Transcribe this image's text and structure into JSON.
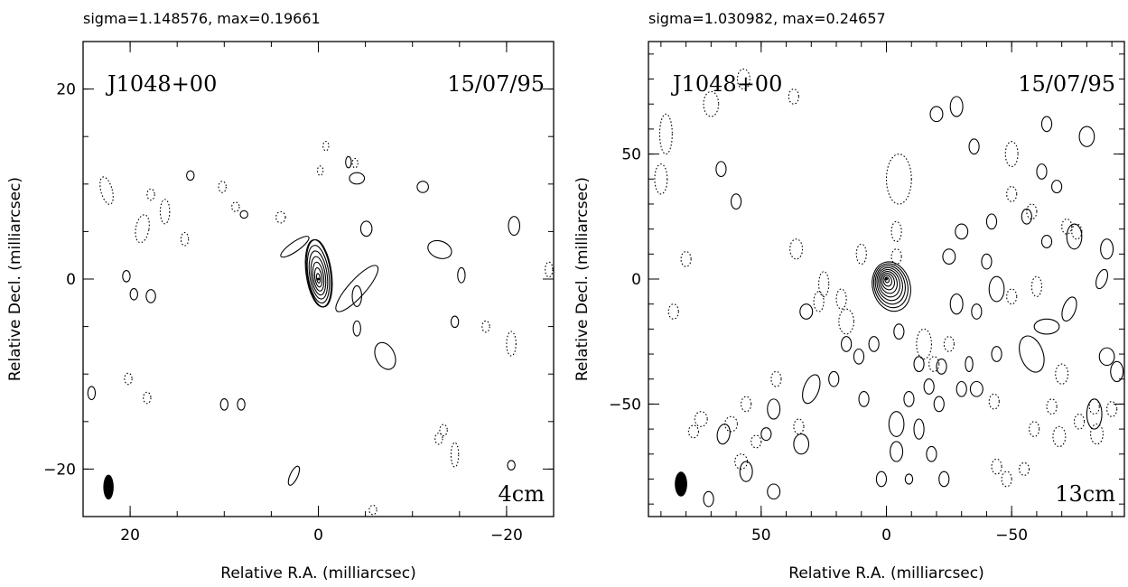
{
  "chart_data": [
    {
      "type": "contour",
      "header": "sigma=1.148576, max=0.19661",
      "source": "J1048+00",
      "date": "15/07/95",
      "band": "4cm",
      "xlabel": "Relative R.A. (milliarcsec)",
      "ylabel": "Relative Decl. (milliarcsec)",
      "xlim": [
        25,
        -25
      ],
      "ylim": [
        -25,
        25
      ],
      "xticks": [
        20,
        0,
        -20
      ],
      "yticks": [
        20,
        0,
        -20
      ],
      "xtick_labels": [
        "20",
        "0",
        "−20"
      ],
      "ytick_labels": [
        "20",
        "0",
        "−20"
      ],
      "core": {
        "x": 0,
        "y": 0
      },
      "contour_levels": 7,
      "beam": {
        "x": 22.3,
        "y": -21.9,
        "major": 2.4,
        "minor": 1.0
      },
      "pos_blobs": [
        [
          -0.1,
          0.6,
          1.3,
          3.6,
          -8
        ],
        [
          -4.1,
          -1,
          3.2,
          0.9,
          -48
        ],
        [
          2.5,
          3.4,
          1.8,
          0.5,
          -35
        ],
        [
          -4.1,
          10.6,
          0.8,
          0.6,
          0
        ],
        [
          -11.1,
          9.7,
          0.6,
          0.6,
          0
        ],
        [
          -12.9,
          3.1,
          1.3,
          0.9,
          20
        ],
        [
          -15.2,
          0.4,
          0.4,
          0.8,
          0
        ],
        [
          -20.8,
          5.6,
          0.6,
          1,
          0
        ],
        [
          -7.1,
          -8.1,
          1,
          1.5,
          -25
        ],
        [
          -4.1,
          -1.8,
          0.5,
          1.1,
          0
        ],
        [
          -4.1,
          -5.2,
          0.4,
          0.8,
          0
        ],
        [
          -14.5,
          -4.5,
          0.4,
          0.6,
          0
        ],
        [
          20.4,
          0.3,
          0.4,
          0.6,
          0
        ],
        [
          19.6,
          -1.6,
          0.4,
          0.6,
          0
        ],
        [
          17.8,
          -1.8,
          0.5,
          0.7,
          0
        ],
        [
          10,
          -13.2,
          0.4,
          0.6,
          0
        ],
        [
          8.2,
          -13.2,
          0.4,
          0.6,
          0
        ],
        [
          2.6,
          -20.7,
          0.4,
          1.1,
          25
        ],
        [
          -20.5,
          -19.6,
          0.4,
          0.5,
          0
        ],
        [
          24.1,
          -12,
          0.4,
          0.7,
          0
        ],
        [
          7.9,
          6.8,
          0.4,
          0.4,
          0
        ],
        [
          13.6,
          10.9,
          0.4,
          0.5,
          0
        ],
        [
          -3.2,
          12.3,
          0.3,
          0.6,
          0
        ],
        [
          -5.1,
          5.3,
          0.6,
          0.8,
          0
        ]
      ],
      "neg_blobs": [
        [
          22.5,
          9.3,
          0.6,
          1.5,
          -15
        ],
        [
          18.7,
          5.3,
          0.7,
          1.5,
          10
        ],
        [
          16.3,
          7.1,
          0.5,
          1.3,
          0
        ],
        [
          14.2,
          4.2,
          0.4,
          0.7,
          0
        ],
        [
          17.8,
          8.9,
          0.4,
          0.6,
          0
        ],
        [
          -0.2,
          11.4,
          0.3,
          0.5,
          0
        ],
        [
          -20.5,
          -6.8,
          0.5,
          1.3,
          0
        ],
        [
          -14.5,
          -18.5,
          0.4,
          1.3,
          0
        ],
        [
          18.2,
          -12.5,
          0.4,
          0.6,
          0
        ],
        [
          20.2,
          -10.5,
          0.4,
          0.6,
          0
        ],
        [
          -24.5,
          1,
          0.4,
          0.8,
          0
        ],
        [
          -17.8,
          -5,
          0.4,
          0.6,
          0
        ],
        [
          4,
          6.5,
          0.5,
          0.6,
          0
        ],
        [
          -3.9,
          12.2,
          0.3,
          0.5,
          0
        ],
        [
          -5.8,
          -24.3,
          0.4,
          0.5,
          0
        ],
        [
          -13.3,
          -15.9,
          0.4,
          0.6,
          0
        ],
        [
          -12.8,
          -16.8,
          0.4,
          0.6,
          0
        ],
        [
          10.2,
          9.7,
          0.4,
          0.6,
          0
        ],
        [
          8.8,
          7.6,
          0.4,
          0.5,
          0
        ],
        [
          -0.8,
          14,
          0.3,
          0.5,
          0
        ]
      ]
    },
    {
      "type": "contour",
      "header": "sigma=1.030982, max=0.24657",
      "source": "J1048+00",
      "date": "15/07/95",
      "band": "13cm",
      "xlabel": "Relative R.A. (milliarcsec)",
      "ylabel": "Relative Decl. (milliarcsec)",
      "xlim": [
        95,
        -95
      ],
      "ylim": [
        -95,
        95
      ],
      "xticks": [
        50,
        0,
        -50
      ],
      "yticks": [
        50,
        0,
        -50
      ],
      "xtick_labels": [
        "50",
        "0",
        "−50"
      ],
      "ytick_labels": [
        "50",
        "0",
        "−50"
      ],
      "core": {
        "x": 0,
        "y": 0
      },
      "contour_levels": 9,
      "beam": {
        "x": 82,
        "y": -82,
        "major": 9,
        "minor": 4.5
      },
      "pos_blobs": [
        [
          -58,
          -30,
          4.5,
          7.5,
          -20
        ],
        [
          -64,
          -19,
          5,
          3,
          0
        ],
        [
          -73,
          -12,
          2.5,
          5,
          20
        ],
        [
          -75,
          17,
          3,
          5,
          0
        ],
        [
          -80,
          57,
          3,
          4,
          0
        ],
        [
          -83,
          -54,
          3,
          6,
          0
        ],
        [
          -88,
          -31,
          3,
          3.5,
          0
        ],
        [
          -92,
          -37,
          2.5,
          4,
          0
        ],
        [
          -88,
          12,
          2.5,
          4,
          0
        ],
        [
          -86,
          0,
          2,
          4,
          20
        ],
        [
          -40,
          7,
          2,
          3,
          0
        ],
        [
          -25,
          9,
          2.5,
          3,
          0
        ],
        [
          -30,
          19,
          2.5,
          3,
          0
        ],
        [
          -42,
          23,
          2,
          3,
          0
        ],
        [
          -64,
          15,
          2,
          2.5,
          0
        ],
        [
          -56,
          25,
          2,
          3,
          0
        ],
        [
          -62,
          43,
          2,
          3,
          0
        ],
        [
          -68,
          37,
          2,
          2.5,
          0
        ],
        [
          -44,
          -30,
          2,
          3,
          0
        ],
        [
          -33,
          -34,
          1.5,
          3,
          0
        ],
        [
          -30,
          -44,
          2,
          3,
          0
        ],
        [
          -36,
          -44,
          2.5,
          3,
          0
        ],
        [
          -21,
          -50,
          2,
          3,
          0
        ],
        [
          -13,
          -60,
          2,
          4,
          0
        ],
        [
          -18,
          -70,
          2,
          3,
          0
        ],
        [
          -23,
          -80,
          2,
          3,
          0
        ],
        [
          30,
          -44,
          3,
          6,
          20
        ],
        [
          45,
          -52,
          2.5,
          4,
          0
        ],
        [
          34,
          -66,
          3,
          4,
          0
        ],
        [
          45,
          -85,
          2.5,
          3,
          0
        ],
        [
          56,
          -77,
          2.5,
          4,
          0
        ],
        [
          65,
          -62,
          2.5,
          4,
          10
        ],
        [
          71,
          -88,
          2,
          3,
          0
        ],
        [
          48,
          -62,
          2,
          2.5,
          0
        ],
        [
          -28,
          69,
          2.5,
          4,
          0
        ],
        [
          -35,
          53,
          2,
          3,
          0
        ],
        [
          -44,
          -4,
          3,
          5,
          0
        ],
        [
          -20,
          66,
          2.5,
          3,
          0
        ],
        [
          -4,
          -58,
          3,
          5,
          0
        ],
        [
          -4,
          -69,
          2.5,
          4,
          0
        ],
        [
          2,
          -80,
          2,
          3,
          0
        ],
        [
          -9,
          -80,
          1.5,
          2,
          0
        ],
        [
          -13,
          -34,
          2,
          3,
          0
        ],
        [
          -22,
          -35,
          2,
          3,
          0
        ],
        [
          -28,
          -10,
          2.5,
          4,
          0
        ],
        [
          -36,
          -13,
          2,
          3,
          0
        ],
        [
          -5,
          -21,
          2,
          3,
          0
        ],
        [
          5,
          -26,
          2,
          3,
          0
        ],
        [
          11,
          -31,
          2,
          3,
          0
        ],
        [
          -17,
          -43,
          2,
          3,
          0
        ],
        [
          21,
          -40,
          2,
          3,
          0
        ],
        [
          9,
          -48,
          2,
          3,
          0
        ],
        [
          -9,
          -48,
          2,
          3,
          0
        ],
        [
          66,
          44,
          2,
          3,
          0
        ],
        [
          60,
          31,
          2,
          3,
          0
        ],
        [
          32,
          -13,
          2.5,
          3,
          0
        ],
        [
          16,
          -26,
          2,
          3,
          0
        ],
        [
          -64,
          62,
          2,
          3,
          0
        ]
      ],
      "neg_blobs": [
        [
          88,
          58,
          2.5,
          8,
          0
        ],
        [
          90,
          40,
          2.5,
          6,
          0
        ],
        [
          70,
          70,
          3,
          5,
          0
        ],
        [
          57,
          80,
          2.5,
          4,
          0
        ],
        [
          37,
          73,
          2,
          3,
          0
        ],
        [
          -5,
          40,
          5,
          10,
          0
        ],
        [
          -4,
          19,
          2,
          4,
          0
        ],
        [
          -4,
          9,
          2,
          3,
          0
        ],
        [
          16,
          -17,
          3,
          5,
          0
        ],
        [
          27,
          -9,
          2,
          4,
          0
        ],
        [
          36,
          12,
          2.5,
          4,
          0
        ],
        [
          25,
          -2,
          2,
          5,
          0
        ],
        [
          18,
          -8,
          2,
          4,
          0
        ],
        [
          10,
          10,
          2,
          4,
          0
        ],
        [
          58,
          -73,
          2.5,
          3,
          0
        ],
        [
          77,
          -61,
          2,
          2.5,
          0
        ],
        [
          -15,
          -26,
          3,
          6,
          0
        ],
        [
          -19,
          -34,
          2,
          3,
          0
        ],
        [
          -50,
          50,
          2.5,
          5,
          0
        ],
        [
          -50,
          34,
          2,
          3,
          0
        ],
        [
          -58,
          27,
          2,
          3,
          0
        ],
        [
          -72,
          21,
          2,
          3,
          0
        ],
        [
          -76,
          19,
          2,
          3,
          0
        ],
        [
          -60,
          -3,
          2,
          4,
          0
        ],
        [
          -50,
          -7,
          2,
          3,
          0
        ],
        [
          -84,
          -62,
          2.5,
          4,
          0
        ],
        [
          -69,
          -63,
          2.5,
          4,
          0
        ],
        [
          -77,
          -57,
          2,
          3,
          0
        ],
        [
          -59,
          -60,
          2,
          3,
          0
        ],
        [
          -44,
          -75,
          2,
          3,
          0
        ],
        [
          -48,
          -80,
          2,
          3,
          0
        ],
        [
          74,
          -56,
          2.5,
          3,
          0
        ],
        [
          62,
          -58,
          2.5,
          3,
          0
        ],
        [
          80,
          8,
          2,
          3,
          0
        ],
        [
          85,
          -13,
          2,
          3,
          0
        ],
        [
          -43,
          -49,
          2,
          3,
          0
        ],
        [
          -25,
          -26,
          2,
          3,
          0
        ],
        [
          44,
          -40,
          2,
          3,
          0
        ],
        [
          35,
          -59,
          2,
          3,
          0
        ],
        [
          56,
          -50,
          2,
          3,
          0
        ],
        [
          -70,
          -38,
          2.5,
          4,
          0
        ],
        [
          -66,
          -51,
          2,
          3,
          0
        ],
        [
          -90,
          -52,
          2,
          3,
          0
        ],
        [
          -83,
          -51,
          2,
          3,
          0
        ],
        [
          52,
          -65,
          2,
          2.5,
          0
        ],
        [
          -55,
          -76,
          2,
          2.5,
          0
        ]
      ]
    }
  ]
}
